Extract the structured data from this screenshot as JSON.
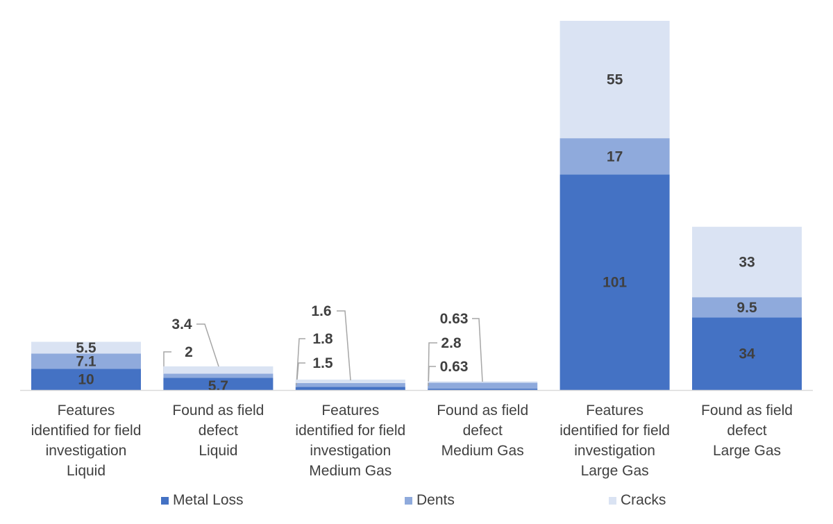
{
  "chart_data": {
    "type": "stacked-bar",
    "categories": [
      "Features\nidentified for field\ninvestigation\nLiquid",
      "Found as field\ndefect\nLiquid",
      "Features\nidentified for field\ninvestigation\nMedium Gas",
      "Found as field\ndefect\nMedium Gas",
      "Features\nidentified for field\ninvestigation\nLarge Gas",
      "Found as field\ndefect\nLarge Gas"
    ],
    "series": [
      {
        "name": "Metal Loss",
        "color": "#4472C4",
        "values": [
          10,
          5.7,
          1.5,
          0.63,
          101,
          34
        ],
        "labels": [
          "10",
          "5.7",
          "1.5",
          "0.63",
          "101",
          "34"
        ]
      },
      {
        "name": "Dents",
        "color": "#8FAADC",
        "values": [
          7.1,
          2,
          1.8,
          2.8,
          17,
          9.5
        ],
        "labels": [
          "7.1",
          "2",
          "1.8",
          "2.8",
          "17",
          "9.5"
        ]
      },
      {
        "name": "Cracks",
        "color": "#DAE3F3",
        "values": [
          5.5,
          3.4,
          1.6,
          0.63,
          55,
          33
        ],
        "labels": [
          "5.5",
          "3.4",
          "1.6",
          "0.63",
          "55",
          "33"
        ]
      }
    ],
    "ylim": [
      0,
      173
    ],
    "grid": false,
    "y_axis_visible": false,
    "legend_position": "bottom",
    "data_labels": true
  }
}
